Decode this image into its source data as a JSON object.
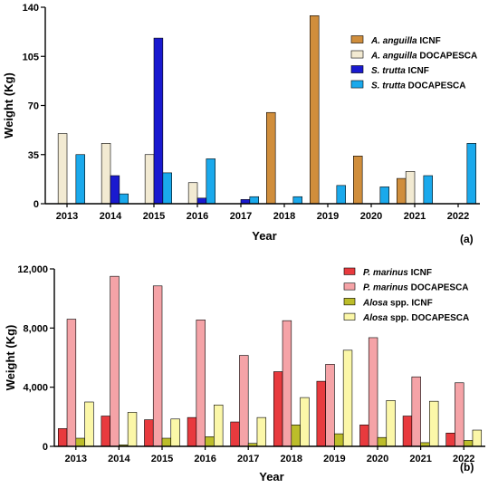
{
  "chart_data": [
    {
      "type": "bar",
      "panel_label": "(a)",
      "xlabel": "Year",
      "ylabel": "Weight (Kg)",
      "categories": [
        "2013",
        "2014",
        "2015",
        "2016",
        "2017",
        "2018",
        "2019",
        "2020",
        "2021",
        "2022"
      ],
      "ylim": [
        0,
        140
      ],
      "yticks": [
        0,
        35,
        70,
        105,
        140
      ],
      "ytick_labels": [
        "0",
        "35",
        "70",
        "105",
        "140"
      ],
      "legend_position": "top-right",
      "grid": false,
      "series": [
        {
          "name_species": "A. anguilla",
          "name_suffix": " ICNF",
          "color": "#d08e3c",
          "values": [
            0,
            0,
            0,
            0,
            0,
            65,
            134,
            34,
            18,
            0
          ]
        },
        {
          "name_species": "A. anguilla",
          "name_suffix": " DOCAPESCA",
          "color": "#f2ead2",
          "values": [
            50,
            43,
            35,
            15,
            0,
            0,
            0,
            0,
            23,
            0
          ]
        },
        {
          "name_species": "S. trutta",
          "name_suffix": " ICNF",
          "color": "#1a1acf",
          "values": [
            0,
            20,
            118,
            4,
            3,
            0,
            0,
            0,
            0,
            0
          ]
        },
        {
          "name_species": "S. trutta",
          "name_suffix": " DOCAPESCA",
          "color": "#1aa9ec",
          "values": [
            35,
            7,
            22,
            32,
            5,
            5,
            13,
            12,
            20,
            43
          ]
        }
      ]
    },
    {
      "type": "bar",
      "panel_label": "(b)",
      "xlabel": "Year",
      "ylabel": "Weight (Kg)",
      "categories": [
        "2013",
        "2014",
        "2015",
        "2016",
        "2017",
        "2018",
        "2019",
        "2020",
        "2021",
        "2022"
      ],
      "ylim": [
        0,
        12000
      ],
      "yticks": [
        0,
        4000,
        8000,
        12000
      ],
      "ytick_labels": [
        "0",
        "4,000",
        "8,000",
        "12,000"
      ],
      "legend_position": "top-right",
      "grid": false,
      "series": [
        {
          "name_species": "P. marinus",
          "name_suffix": " ICNF",
          "color": "#e83a3e",
          "values": [
            1200,
            2050,
            1800,
            1950,
            1650,
            5050,
            4400,
            1450,
            2050,
            900
          ]
        },
        {
          "name_species": "P. marinus",
          "name_suffix": " DOCAPESCA",
          "color": "#f5a3a7",
          "values": [
            8600,
            11500,
            10850,
            8550,
            6150,
            8500,
            5550,
            7350,
            4700,
            4300
          ]
        },
        {
          "name_species": "Alosa",
          "name_suffix": " spp. ICNF",
          "color": "#bcbd2a",
          "values": [
            550,
            100,
            550,
            650,
            200,
            1450,
            850,
            600,
            250,
            400
          ]
        },
        {
          "name_species": "Alosa",
          "name_suffix": " spp. DOCAPESCA",
          "color": "#fbf7a8",
          "values": [
            3000,
            2300,
            1850,
            2800,
            1950,
            3300,
            6500,
            3100,
            3050,
            1100
          ]
        }
      ]
    }
  ]
}
